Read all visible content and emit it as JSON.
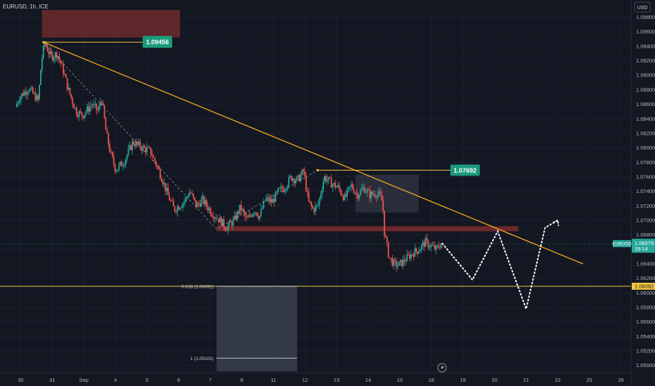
{
  "header": {
    "symbol": "EURUSD, 1h, ICE",
    "currency": "USD"
  },
  "price_tag": {
    "symbol": "EURUSD",
    "price": "1.06679",
    "countdown": "29:14"
  },
  "level_tag": "1.06092",
  "annotations": {
    "high_label": "1.09456",
    "mid_label": "1.07692",
    "fib_618": "0.618 (1.06091)",
    "fib_1": "1 (1.05101)"
  },
  "colors": {
    "background": "#131722",
    "up": "#26a69a",
    "down": "#ef5350",
    "trendline": "#f5a623",
    "level": "#f5c542",
    "projection": "#ffffff",
    "label_green": "#1b9a7c",
    "zone_red": "#8b2f2f"
  },
  "chart_data": {
    "type": "candlestick",
    "title": "EURUSD, 1h, ICE",
    "x_ticks": [
      "30",
      "31",
      "Sep",
      "4",
      "5",
      "6",
      "7",
      "8",
      "11",
      "12",
      "13",
      "14",
      "15",
      "18",
      "19",
      "20",
      "21",
      "22",
      "25",
      "26"
    ],
    "y_ticks": [
      "1.09800",
      "1.09600",
      "1.09400",
      "1.09200",
      "1.09000",
      "1.08800",
      "1.08600",
      "1.08400",
      "1.08200",
      "1.08000",
      "1.07800",
      "1.07600",
      "1.07400",
      "1.07200",
      "1.07000",
      "1.06800",
      "1.06600",
      "1.06400",
      "1.06200",
      "1.06000",
      "1.05800",
      "1.05600",
      "1.05400",
      "1.05200",
      "1.05000"
    ],
    "ylim": [
      1.0492,
      1.0996
    ],
    "ticks_x_days": [
      0,
      1,
      2,
      3,
      4,
      5,
      6,
      7,
      8,
      9,
      10,
      11,
      12,
      13,
      14,
      15,
      16,
      17,
      18,
      19
    ],
    "xlim_days": [
      -0.12,
      19.1
    ],
    "price_path": [
      [
        -0.55,
        1.079
      ],
      [
        -0.3,
        1.0835
      ],
      [
        0.0,
        1.087
      ],
      [
        0.3,
        1.0882
      ],
      [
        0.6,
        1.0865
      ],
      [
        0.7,
        1.092
      ],
      [
        0.8,
        1.0945
      ],
      [
        1.0,
        1.0925
      ],
      [
        1.2,
        1.093
      ],
      [
        1.4,
        1.0905
      ],
      [
        1.55,
        1.088
      ],
      [
        1.8,
        1.085
      ],
      [
        2.0,
        1.0845
      ],
      [
        2.3,
        1.086
      ],
      [
        2.5,
        1.085
      ],
      [
        2.6,
        1.087
      ],
      [
        2.75,
        1.082
      ],
      [
        2.9,
        1.079
      ],
      [
        3.05,
        1.077
      ],
      [
        3.3,
        1.078
      ],
      [
        3.6,
        1.0808
      ],
      [
        3.9,
        1.08
      ],
      [
        4.15,
        1.0795
      ],
      [
        4.3,
        1.078
      ],
      [
        4.5,
        1.076
      ],
      [
        4.7,
        1.0735
      ],
      [
        4.9,
        1.0715
      ],
      [
        5.2,
        1.0725
      ],
      [
        5.4,
        1.074
      ],
      [
        5.6,
        1.072
      ],
      [
        5.8,
        1.0728
      ],
      [
        6.1,
        1.071
      ],
      [
        6.35,
        1.07
      ],
      [
        6.55,
        1.069
      ],
      [
        6.8,
        1.07
      ],
      [
        7.0,
        1.0718
      ],
      [
        7.2,
        1.07
      ],
      [
        7.45,
        1.0715
      ],
      [
        7.6,
        1.0705
      ],
      [
        7.8,
        1.073
      ],
      [
        8.0,
        1.0725
      ],
      [
        8.2,
        1.074
      ],
      [
        8.4,
        1.0745
      ],
      [
        8.6,
        1.076
      ],
      [
        8.8,
        1.0755
      ],
      [
        9.0,
        1.0768
      ],
      [
        9.15,
        1.0725
      ],
      [
        9.3,
        1.0715
      ],
      [
        9.45,
        1.072
      ],
      [
        9.65,
        1.076
      ],
      [
        9.9,
        1.075
      ],
      [
        10.1,
        1.0745
      ],
      [
        10.3,
        1.073
      ],
      [
        10.5,
        1.0748
      ],
      [
        10.7,
        1.0735
      ],
      [
        10.9,
        1.0745
      ],
      [
        11.1,
        1.0735
      ],
      [
        11.35,
        1.0738
      ],
      [
        11.5,
        1.0725
      ],
      [
        11.55,
        1.0685
      ],
      [
        11.7,
        1.065
      ],
      [
        11.85,
        1.064
      ],
      [
        12.0,
        1.0638
      ],
      [
        12.2,
        1.0645
      ],
      [
        12.45,
        1.0655
      ],
      [
        12.65,
        1.066
      ],
      [
        12.85,
        1.067
      ],
      [
        13.0,
        1.0665
      ],
      [
        13.2,
        1.066
      ],
      [
        13.35,
        1.0668
      ]
    ],
    "high_point": {
      "day": 0.72,
      "price": 1.09456
    },
    "trendline": [
      [
        0.72,
        1.09456
      ],
      [
        17.8,
        1.064
      ]
    ],
    "upper_trend_label_anchor": [
      13.7,
      1.07692
    ],
    "mid_line": [
      [
        9.4,
        1.07692
      ],
      [
        13.6,
        1.07692
      ]
    ],
    "support_zone": {
      "from_day": 6.2,
      "to_day": 15.75,
      "price_low": 1.0685,
      "price_high": 1.069
    },
    "supply_zone": {
      "from_day": 0.72,
      "to_day": 5.0,
      "price_low": 1.0952,
      "price_high": 1.099
    },
    "consolidation_box": {
      "from_day": 10.6,
      "to_day": 12.6,
      "price_low": 1.0711,
      "price_high": 1.0763
    },
    "fib_box": {
      "from_day": 6.2,
      "to_day": 8.75,
      "price_low": 1.0492,
      "price_high": 1.06091
    },
    "fib_618_price": 1.06091,
    "fib_1_price": 1.05101,
    "dashed_guide": [
      [
        0.72,
        1.09456
      ],
      [
        6.2,
        1.0688
      ],
      [
        9.4,
        1.07692
      ]
    ],
    "projection": [
      [
        13.35,
        1.0668
      ],
      [
        14.3,
        1.0618
      ],
      [
        15.1,
        1.0685
      ],
      [
        16.0,
        1.0578
      ],
      [
        16.6,
        1.069
      ],
      [
        17.0,
        1.07
      ]
    ],
    "horizontal_level": 1.06092,
    "last_price": 1.06679
  }
}
